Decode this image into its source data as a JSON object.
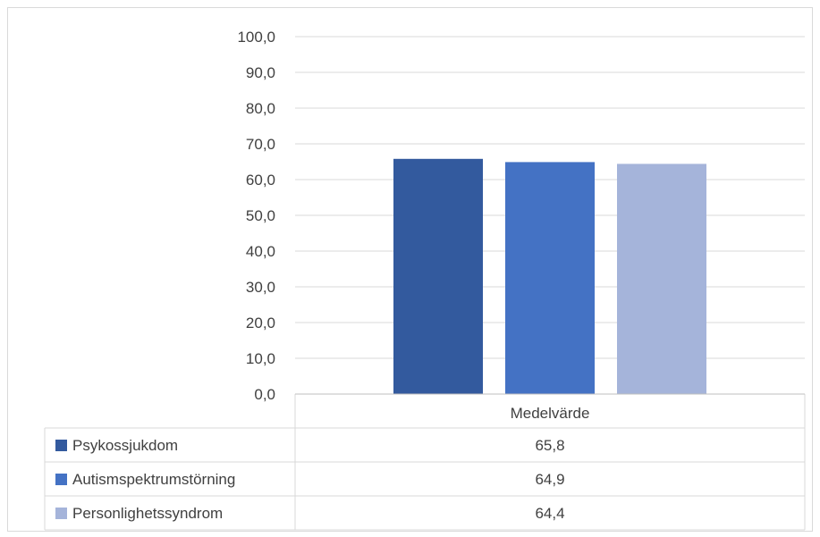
{
  "chart_data": {
    "type": "bar",
    "title": "",
    "xlabel": "",
    "ylabel": "",
    "categories": [
      "Medelvärde"
    ],
    "series": [
      {
        "name": "Psykossjukdom",
        "values": [
          65.8
        ],
        "color": "#335A9E"
      },
      {
        "name": "Autismspektrumstörning",
        "values": [
          64.9
        ],
        "color": "#4472C4"
      },
      {
        "name": "Personlighetssyndrom",
        "values": [
          64.4
        ],
        "color": "#A5B4DA"
      }
    ],
    "yticks": [
      "0,0",
      "10,0",
      "20,0",
      "30,0",
      "40,0",
      "50,0",
      "60,0",
      "70,0",
      "80,0",
      "90,0",
      "100,0"
    ],
    "ylim": [
      0,
      100
    ],
    "grid": true,
    "legend": "data-table",
    "value_labels": [
      "65,8",
      "64,9",
      "64,4"
    ]
  }
}
